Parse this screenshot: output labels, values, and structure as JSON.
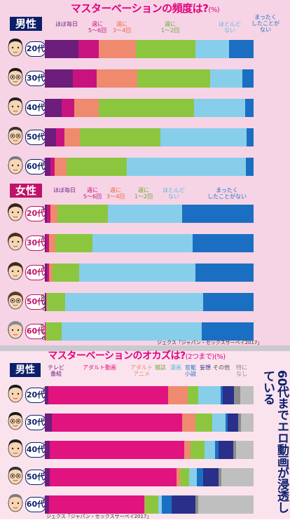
{
  "frequency": {
    "title": "マスターベーションの頻度は?",
    "unit": "(%)",
    "colors": [
      "#6d1d7c",
      "#c8137f",
      "#ef8a6e",
      "#8cc63f",
      "#87ceeb",
      "#1b6fc2"
    ],
    "label_colors": [
      "#fff",
      "#fff",
      "#222",
      "#222",
      "#222",
      "#fff"
    ],
    "male": {
      "label": "男性",
      "legend": [
        "ほぼ毎日",
        "週に\n5〜6回",
        "週に\n3〜4回",
        "週に\n1〜2回",
        "ほとんど\nない",
        "まったく\nしたことが\nない"
      ],
      "chart_data": {
        "type": "bar",
        "categories": [
          "20代",
          "30代",
          "40代",
          "50代",
          "60代"
        ],
        "series": [
          {
            "name": "ほぼ毎日",
            "values": [
              16.1,
              13.4,
              8.1,
              5.3,
              2.6
            ]
          },
          {
            "name": "週に5〜6回",
            "values": [
              9.8,
              11.3,
              6.0,
              4.1,
              2.0
            ]
          },
          {
            "name": "週に3〜4回",
            "values": [
              17.6,
              19.7,
              11.8,
              7.5,
              5.7
            ]
          },
          {
            "name": "週に1〜2回",
            "values": [
              28.8,
              34.7,
              45.7,
              38.5,
              28.9
            ]
          },
          {
            "name": "ほとんどない",
            "values": [
              15.8,
              15.6,
              24.4,
              41.4,
              57.1
            ]
          },
          {
            "name": "まったくしたことがない",
            "values": [
              11.9,
              5.2,
              4.0,
              3.3,
              3.7
            ]
          }
        ]
      }
    },
    "female": {
      "label": "女性",
      "legend": [
        "ほぼ毎日",
        "週に\n5〜6回",
        "週に\n3〜4回",
        "週に\n1〜2回",
        "ほとんど\nない",
        "まったく\nしたことがない"
      ],
      "chart_data": {
        "type": "bar",
        "categories": [
          "20代",
          "30代",
          "40代",
          "50代",
          "60代"
        ],
        "series": [
          {
            "name": "ほぼ毎日",
            "values": [
              1.1,
              0.8,
              1.0,
              0.6,
              0.0
            ]
          },
          {
            "name": "週に5〜6回",
            "values": [
              1.6,
              1.1,
              1.0,
              0.0,
              0.5
            ]
          },
          {
            "name": "週に3〜4回",
            "values": [
              3.3,
              3.3,
              1.7,
              0.5,
              0.2
            ]
          },
          {
            "name": "週に1〜2回",
            "values": [
              24.2,
              17.7,
              12.7,
              8.6,
              7.3
            ]
          },
          {
            "name": "ほとんどない",
            "values": [
              35.6,
              47.8,
              55.7,
              66.1,
              67.2
            ]
          },
          {
            "name": "まったくしたことがない",
            "values": [
              34.1,
              29.3,
              27.9,
              24.3,
              24.9
            ]
          }
        ]
      }
    },
    "source": "ジェクス「ジャパン・セックスサーベイ2017」"
  },
  "okazu": {
    "title": "マスターベーションのオカズは?",
    "unit": "(2つまで)(%)",
    "side_title": "60代までエロ動画が浸透している",
    "colors": [
      "#6d1d7c",
      "#e0137f",
      "#ef8a6e",
      "#8cc63f",
      "#87ceeb",
      "#1b6fc2",
      "#2a2f8a",
      "#8c8c8c",
      "#bfbfbf"
    ],
    "label_colors": [
      "#fff",
      "#fff",
      "#fff",
      "#fff",
      "#222",
      "#fff",
      "#fff",
      "#fff",
      "#222"
    ],
    "male": {
      "label": "男性",
      "legend": [
        "テレビ\n番組",
        "アダルト動画",
        "アダルト\nアニメ",
        "雑誌",
        "漫画",
        "官能\n小説",
        "妄想",
        "その他",
        "特に\nなし"
      ],
      "chart_data": {
        "type": "bar",
        "categories": [
          "20代",
          "30代",
          "40代",
          "50代",
          "60代"
        ],
        "series": [
          {
            "name": "テレビ番組",
            "values": [
              2.3,
              4.5,
              2.7,
              2.7,
              2.3
            ]
          },
          {
            "name": "アダルト動画",
            "values": [
              76.5,
              81.6,
              77.4,
              69.5,
              51.4
            ]
          },
          {
            "name": "アダルトアニメ",
            "values": [
              12.7,
              8.4,
              3.5,
              2.1,
              0.5
            ]
          },
          {
            "name": "雑誌",
            "values": [
              6.6,
              10.6,
              7.9,
              4.7,
              7.0
            ]
          },
          {
            "name": "漫画",
            "values": [
              14.5,
              8.3,
              6.2,
              4.5,
              2.1
            ]
          },
          {
            "name": "官能小説",
            "values": [
              1.3,
              1.3,
              1.9,
              3.4,
              5.3
            ]
          },
          {
            "name": "妄想",
            "values": [
              7.0,
              6.8,
              8.7,
              8.6,
              12.6
            ]
          },
          {
            "name": "その他",
            "values": [
              4.2,
              1.8,
              1.6,
              1.3,
              1.7
            ]
          },
          {
            "name": "特になし",
            "values": [
              8.4,
              7.7,
              9.9,
              17.7,
              29.8
            ]
          }
        ]
      }
    },
    "source": "ジェクス「ジャパン・セックスサーベイ2017」"
  }
}
